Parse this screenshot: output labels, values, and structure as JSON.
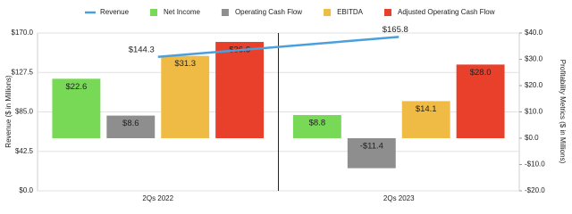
{
  "chart_data": {
    "type": "bar",
    "y_label": "Revenue ($ in Millions)",
    "y2_label": "Profitability Metrics ($ in Millions)",
    "categories": [
      "2Qs 2022",
      "2Qs 2023"
    ],
    "ylim": [
      0,
      170
    ],
    "yticks": [
      {
        "value": 0,
        "label": "$0.0"
      },
      {
        "value": 42.5,
        "label": "$42.5"
      },
      {
        "value": 85,
        "label": "$85.0"
      },
      {
        "value": 127.5,
        "label": "$127.5"
      },
      {
        "value": 170,
        "label": "$170.0"
      }
    ],
    "y2lim": [
      -20,
      40
    ],
    "y2ticks": [
      {
        "value": -20,
        "label": "-$20.0"
      },
      {
        "value": -10,
        "label": "-$10.0"
      },
      {
        "value": 0,
        "label": "$0.0"
      },
      {
        "value": 10,
        "label": "$10.0"
      },
      {
        "value": 20,
        "label": "$20.0"
      },
      {
        "value": 30,
        "label": "$30.0"
      },
      {
        "value": 40,
        "label": "$40.0"
      }
    ],
    "grid": true,
    "legend": "top",
    "series": [
      {
        "name": "Revenue",
        "type": "line",
        "color": "#4a9fdc",
        "values": [
          144.3,
          165.8
        ],
        "value_labels": [
          "$144.3",
          "$165.8"
        ]
      },
      {
        "name": "Net Income",
        "axis": "y2",
        "color": "#78d956",
        "values": [
          22.6,
          8.8
        ],
        "value_labels": [
          "$22.6",
          "$8.8"
        ]
      },
      {
        "name": "Operating Cash Flow",
        "axis": "y2",
        "color": "#8e8e8e",
        "values": [
          8.6,
          -11.4
        ],
        "value_labels": [
          "$8.6",
          "-$11.4"
        ]
      },
      {
        "name": "EBITDA",
        "axis": "y2",
        "color": "#f0bb45",
        "values": [
          31.3,
          14.1
        ],
        "value_labels": [
          "$31.3",
          "$14.1"
        ]
      },
      {
        "name": "Adjusted Operating Cash Flow",
        "axis": "y2",
        "color": "#e8402b",
        "values": [
          36.6,
          28.0
        ],
        "value_labels": [
          "$36.6",
          "$28.0"
        ]
      }
    ]
  }
}
